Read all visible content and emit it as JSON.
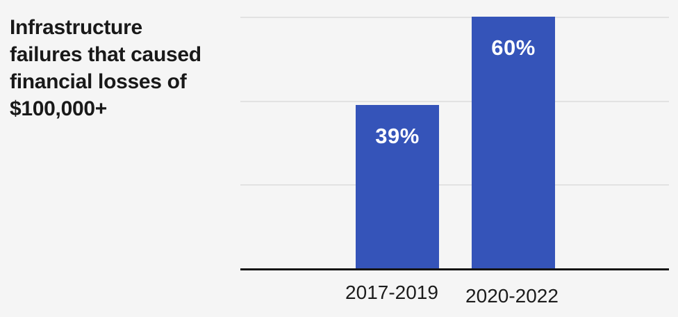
{
  "chart_data": {
    "type": "bar",
    "title": "Infrastructure failures that caused financial losses of $100,000+",
    "title_lines": "Infrastructure\nfailures that caused\nfinancial losses of\n$100,000+",
    "categories": [
      "2017-2019",
      "2020-2022"
    ],
    "values": [
      39,
      60
    ],
    "value_labels": [
      "39%",
      "60%"
    ],
    "ylabel": "",
    "xlabel": "",
    "ylim": [
      0,
      60
    ],
    "gridline_values": [
      20,
      40,
      60
    ],
    "grid": true,
    "legend": "none",
    "colors": {
      "bar": "#3554b9",
      "background": "#f5f5f5",
      "title_text": "#191919",
      "gridline": "#e2e2e2",
      "axis_line": "#151515",
      "bar_label_text": "#ffffff",
      "tick_label_text": "#1c1c1c"
    }
  }
}
